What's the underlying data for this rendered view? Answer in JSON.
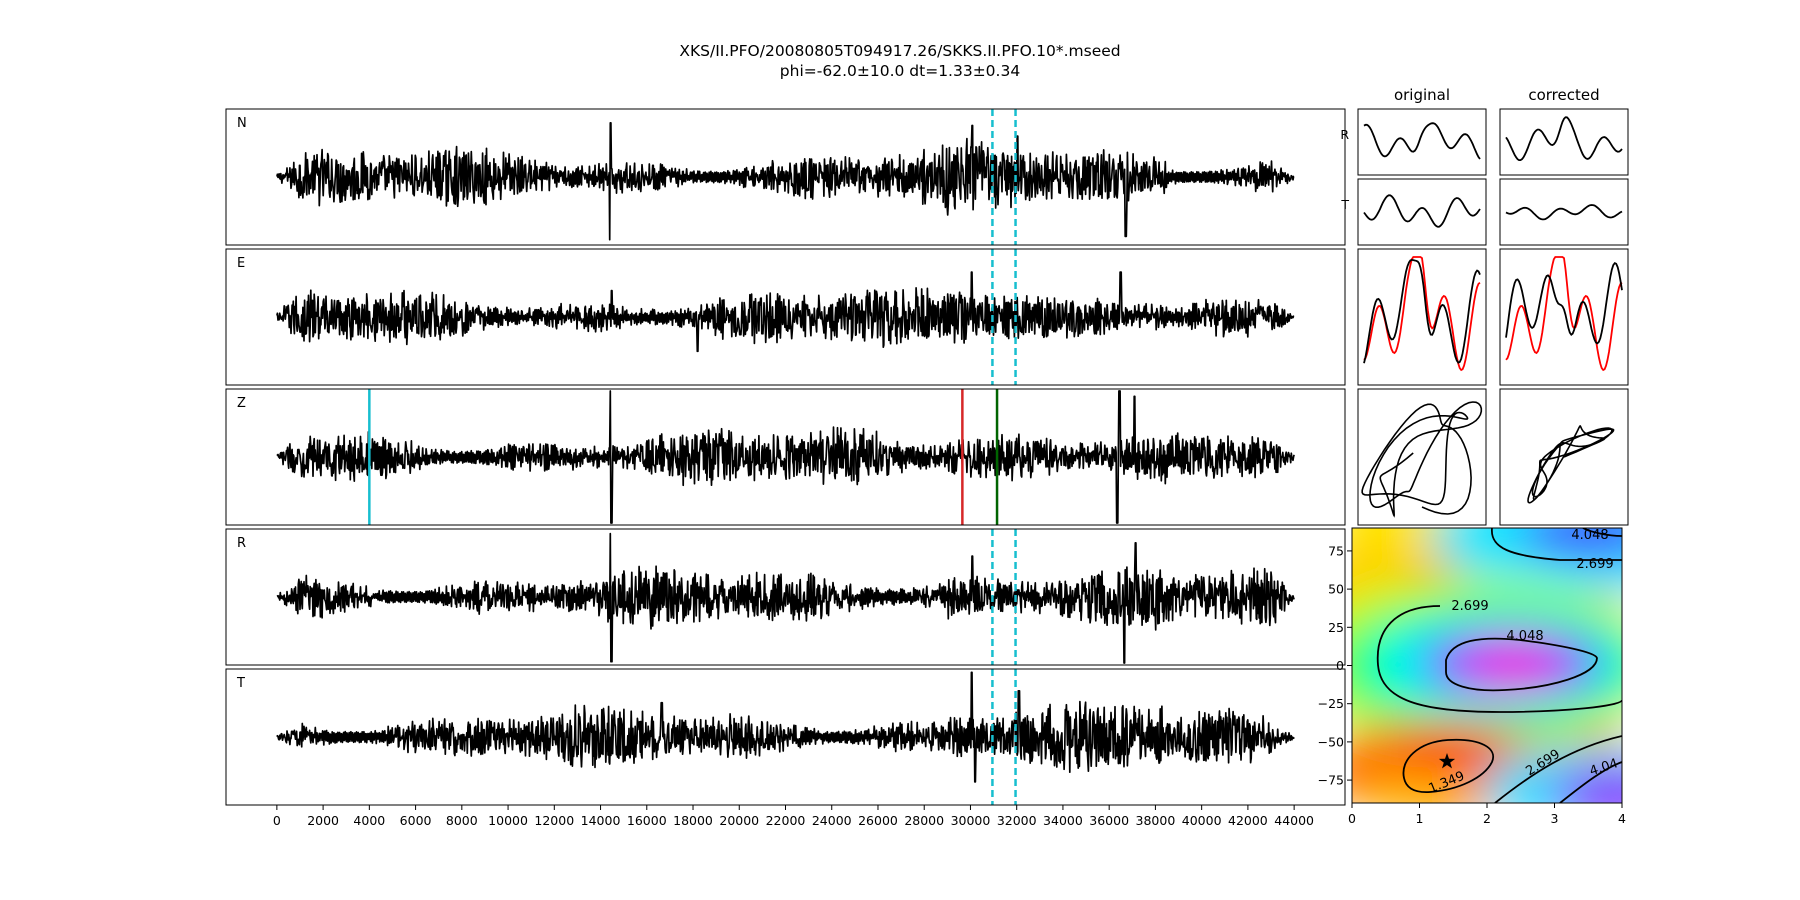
{
  "figure": {
    "title_line1": "XKS/II.PFO/20080805T094917.26/SKKS.II.PFO.10*.mseed",
    "title_line2": "phi=-62.0±10.0 dt=1.33±0.34"
  },
  "chart_data": [
    {
      "type": "line",
      "name": "waveforms",
      "channels": [
        "N",
        "E",
        "Z",
        "R",
        "T"
      ],
      "xlim": [
        -2200,
        46200
      ],
      "x_ticks": [
        0,
        2000,
        4000,
        6000,
        8000,
        10000,
        12000,
        14000,
        16000,
        18000,
        20000,
        22000,
        24000,
        26000,
        28000,
        30000,
        32000,
        34000,
        36000,
        38000,
        40000,
        42000,
        44000
      ],
      "x_tick_labels": [
        "0",
        "2000",
        "4000",
        "6000",
        "8000",
        "10000",
        "12000",
        "14000",
        "16000",
        "18000",
        "20000",
        "22000",
        "24000",
        "26000",
        "28000",
        "30000",
        "32000",
        "34000",
        "36000",
        "38000",
        "40000",
        "42000",
        "44000"
      ],
      "trace_x_range": [
        0,
        44000
      ],
      "window_lines": {
        "x": [
          30950,
          31950
        ],
        "color": "#17becf",
        "style": "dashed",
        "channels": [
          "N",
          "E",
          "R",
          "T"
        ]
      },
      "z_picks": [
        {
          "x": 4000,
          "color": "#17becf"
        },
        {
          "x": 29650,
          "color": "#d62728"
        },
        {
          "x": 31150,
          "color": "#006400"
        }
      ],
      "spikes": {
        "N": [
          [
            14420,
            -0.95
          ],
          [
            14440,
            0.82
          ],
          [
            30080,
            0.78
          ],
          [
            36720,
            -0.9
          ],
          [
            32030,
            0.62
          ]
        ],
        "E": [
          [
            14480,
            0.4
          ],
          [
            30050,
            0.68
          ],
          [
            36500,
            0.68
          ],
          [
            18200,
            -0.52
          ]
        ],
        "Z": [
          [
            14430,
            1.0
          ],
          [
            14470,
            -1.0
          ],
          [
            36350,
            -1.0
          ],
          [
            36450,
            1.0
          ],
          [
            37100,
            0.92
          ]
        ],
        "R": [
          [
            14430,
            0.96
          ],
          [
            14470,
            -0.98
          ],
          [
            30080,
            0.62
          ],
          [
            36650,
            -1.0
          ],
          [
            37150,
            0.82
          ]
        ],
        "T": [
          [
            30060,
            0.98
          ],
          [
            30200,
            -0.68
          ],
          [
            16650,
            0.52
          ],
          [
            32100,
            0.7
          ]
        ]
      }
    },
    {
      "type": "line",
      "name": "particle-motion-and-components",
      "column_headers": [
        "original",
        "corrected"
      ],
      "row_labels": [
        "R",
        "T"
      ],
      "series_colors": {
        "reference": "#ff0000",
        "trace": "#000000"
      }
    },
    {
      "type": "heatmap",
      "name": "error-surface",
      "xlim": [
        0,
        4
      ],
      "ylim": [
        -90,
        90
      ],
      "x_ticks": [
        0,
        1,
        2,
        3,
        4
      ],
      "x_tick_labels": [
        "0",
        "1",
        "2",
        "3",
        "4"
      ],
      "y_ticks": [
        75,
        50,
        25,
        0,
        -25,
        -50,
        -75
      ],
      "y_tick_labels": [
        "75",
        "50",
        "25",
        "0",
        "−25",
        "−50",
        "−75"
      ],
      "contour_labels": [
        "4.048",
        "2.699",
        "2.699",
        "4.048",
        "1.349",
        "2.699",
        "4.04"
      ],
      "best_fit": {
        "dt": 1.33,
        "phi": -62.0
      },
      "colormap": "gist_rainbow_r"
    }
  ]
}
